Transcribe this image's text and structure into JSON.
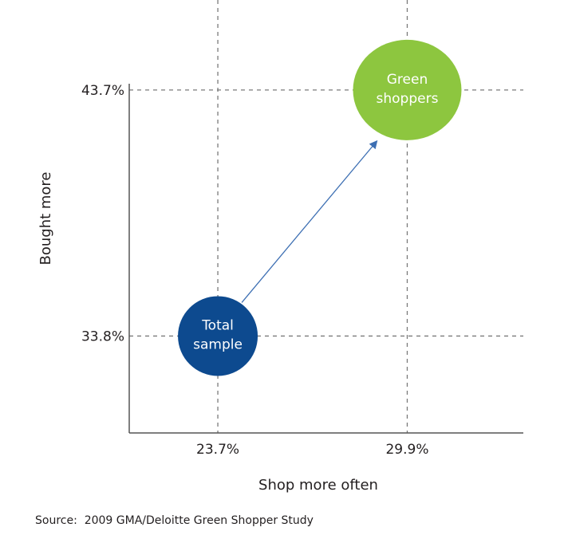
{
  "chart_data": {
    "type": "scatter",
    "xlabel": "Shop more often",
    "ylabel": "Bought more",
    "x_ticks": [
      "23.7%",
      "29.9%"
    ],
    "y_ticks": [
      "33.8%",
      "43.7%"
    ],
    "xlim": [
      20.8,
      33.7
    ],
    "ylim": [
      29.9,
      47.0
    ],
    "grid": true,
    "points": [
      {
        "label": [
          "Total",
          "sample"
        ],
        "x": 23.7,
        "y": 33.8,
        "color": "#0d4a8f"
      },
      {
        "label": [
          "Green",
          "shoppers"
        ],
        "x": 29.9,
        "y": 43.7,
        "color": "#8dc63f"
      }
    ],
    "arrow": {
      "from": "Total sample",
      "to": "Green shoppers",
      "color": "#3d6fb3"
    }
  },
  "source": "Source:  2009 GMA/Deloitte Green Shopper Study"
}
